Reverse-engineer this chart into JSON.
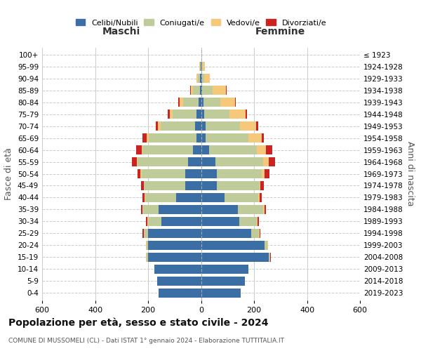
{
  "age_groups": [
    "0-4",
    "5-9",
    "10-14",
    "15-19",
    "20-24",
    "25-29",
    "30-34",
    "35-39",
    "40-44",
    "45-49",
    "50-54",
    "55-59",
    "60-64",
    "65-69",
    "70-74",
    "75-79",
    "80-84",
    "85-89",
    "90-94",
    "95-99",
    "100+"
  ],
  "birth_years": [
    "2019-2023",
    "2014-2018",
    "2009-2013",
    "2004-2008",
    "1999-2003",
    "1994-1998",
    "1989-1993",
    "1984-1988",
    "1979-1983",
    "1974-1978",
    "1969-1973",
    "1964-1968",
    "1959-1963",
    "1954-1958",
    "1949-1953",
    "1944-1948",
    "1939-1943",
    "1934-1938",
    "1929-1933",
    "1924-1928",
    "≤ 1923"
  ],
  "males": {
    "celibi": [
      160,
      165,
      175,
      200,
      200,
      200,
      150,
      160,
      95,
      60,
      60,
      50,
      30,
      18,
      22,
      18,
      8,
      5,
      3,
      2,
      0
    ],
    "coniugati": [
      0,
      0,
      0,
      5,
      5,
      15,
      50,
      60,
      115,
      155,
      165,
      190,
      190,
      180,
      130,
      90,
      60,
      25,
      8,
      3,
      0
    ],
    "vedovi": [
      0,
      0,
      0,
      2,
      2,
      2,
      2,
      2,
      2,
      2,
      3,
      3,
      5,
      8,
      10,
      10,
      12,
      8,
      5,
      2,
      0
    ],
    "divorziati": [
      0,
      0,
      0,
      2,
      2,
      3,
      5,
      5,
      8,
      10,
      12,
      18,
      20,
      15,
      10,
      8,
      5,
      2,
      0,
      0,
      0
    ]
  },
  "females": {
    "nubili": [
      150,
      165,
      180,
      255,
      240,
      190,
      145,
      140,
      90,
      60,
      60,
      55,
      30,
      18,
      18,
      13,
      8,
      4,
      3,
      2,
      0
    ],
    "coniugate": [
      0,
      0,
      0,
      5,
      10,
      28,
      65,
      95,
      125,
      160,
      170,
      180,
      180,
      160,
      130,
      95,
      65,
      40,
      8,
      5,
      0
    ],
    "vedove": [
      0,
      0,
      0,
      2,
      2,
      2,
      3,
      5,
      5,
      5,
      10,
      20,
      35,
      50,
      60,
      60,
      55,
      50,
      22,
      8,
      2
    ],
    "divorziate": [
      0,
      0,
      0,
      2,
      2,
      3,
      5,
      5,
      8,
      12,
      18,
      25,
      25,
      10,
      8,
      5,
      3,
      2,
      0,
      0,
      0
    ]
  },
  "colors": {
    "celibi": "#3A6EA5",
    "coniugati": "#BFCC99",
    "vedovi": "#F5C87A",
    "divorziati": "#CC2222"
  },
  "title": "Popolazione per età, sesso e stato civile - 2024",
  "subtitle": "COMUNE DI MUSSOMELI (CL) - Dati ISTAT 1° gennaio 2024 - Elaborazione TUTTITALIA.IT",
  "xlabel_left": "Maschi",
  "xlabel_right": "Femmine",
  "ylabel_left": "Fasce di età",
  "ylabel_right": "Anni di nascita",
  "xlim": 600,
  "bg_color": "#ffffff",
  "grid_color": "#cccccc"
}
